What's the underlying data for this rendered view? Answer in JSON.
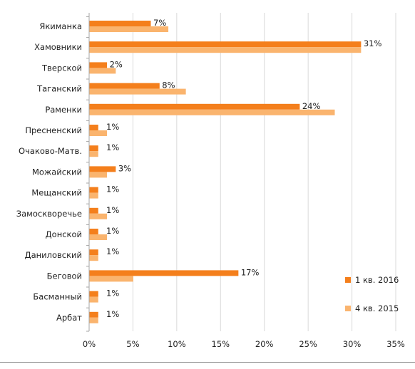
{
  "chart_data": {
    "type": "bar",
    "orientation": "horizontal",
    "categories": [
      "Якиманка",
      "Хамовники",
      "Тверской",
      "Таганский",
      "Раменки",
      "Пресненский",
      "Очаково-Матв.",
      "Можайский",
      "Мещанский",
      "Замоскворечье",
      "Донской",
      "Даниловский",
      "Беговой",
      "Басманный",
      "Арбат"
    ],
    "series": [
      {
        "name": "1 кв. 2016",
        "color": "#F47F1C",
        "values": [
          7,
          31,
          2,
          8,
          24,
          1,
          1,
          3,
          1,
          1,
          1,
          1,
          17,
          1,
          1
        ],
        "labels": [
          "7%",
          "31%",
          "2%",
          "8%",
          "24%",
          "1%",
          "1%",
          "3%",
          "1%",
          "1%",
          "1%",
          "1%",
          "17%",
          "1%",
          "1%"
        ]
      },
      {
        "name": "4 кв. 2015",
        "color": "#FAB46E",
        "values": [
          9,
          31,
          3,
          11,
          28,
          2,
          1,
          2,
          1,
          2,
          2,
          1,
          5,
          1,
          1
        ]
      }
    ],
    "xlim": [
      0,
      35
    ],
    "xticks": [
      "0%",
      "5%",
      "10%",
      "15%",
      "20%",
      "25%",
      "30%",
      "35%"
    ],
    "xlabel": "",
    "ylabel": "",
    "title": "",
    "grid": "vertical",
    "legend_position": "bottom-right"
  }
}
